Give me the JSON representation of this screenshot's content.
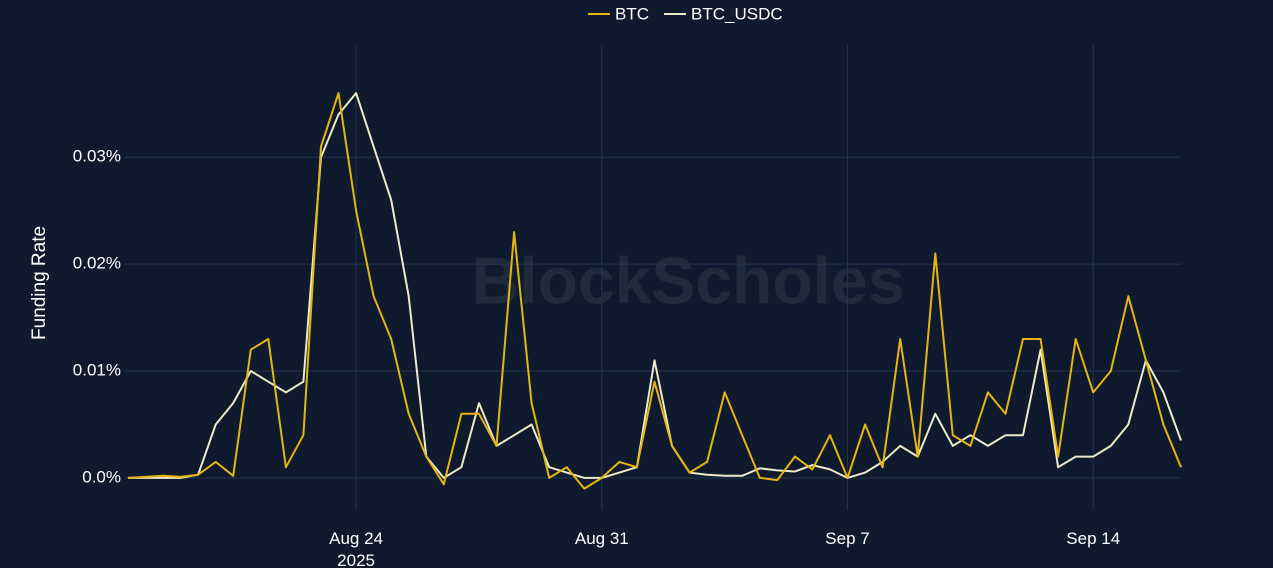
{
  "chart_data": {
    "type": "line",
    "watermark": "BlockScholes",
    "ylabel": "Funding Rate",
    "x": [
      "2025-08-17T12:00",
      "2025-08-18T00:00",
      "2025-08-18T12:00",
      "2025-08-19T00:00",
      "2025-08-19T12:00",
      "2025-08-20T00:00",
      "2025-08-20T12:00",
      "2025-08-21T00:00",
      "2025-08-21T12:00",
      "2025-08-22T00:00",
      "2025-08-22T12:00",
      "2025-08-23T00:00",
      "2025-08-23T12:00",
      "2025-08-24T00:00",
      "2025-08-24T12:00",
      "2025-08-25T00:00",
      "2025-08-25T12:00",
      "2025-08-26T00:00",
      "2025-08-26T12:00",
      "2025-08-27T00:00",
      "2025-08-27T12:00",
      "2025-08-28T00:00",
      "2025-08-28T12:00",
      "2025-08-29T00:00",
      "2025-08-29T12:00",
      "2025-08-30T00:00",
      "2025-08-30T12:00",
      "2025-08-31T00:00",
      "2025-08-31T12:00",
      "2025-09-01T00:00",
      "2025-09-01T12:00",
      "2025-09-02T00:00",
      "2025-09-02T12:00",
      "2025-09-03T00:00",
      "2025-09-03T12:00",
      "2025-09-04T00:00",
      "2025-09-04T12:00",
      "2025-09-05T00:00",
      "2025-09-05T12:00",
      "2025-09-06T00:00",
      "2025-09-06T12:00",
      "2025-09-07T00:00",
      "2025-09-07T12:00",
      "2025-09-08T00:00",
      "2025-09-08T12:00",
      "2025-09-09T00:00",
      "2025-09-09T12:00",
      "2025-09-10T00:00",
      "2025-09-10T12:00",
      "2025-09-11T00:00",
      "2025-09-11T12:00",
      "2025-09-12T00:00",
      "2025-09-12T12:00",
      "2025-09-13T00:00",
      "2025-09-13T12:00",
      "2025-09-14T00:00",
      "2025-09-14T12:00",
      "2025-09-15T00:00",
      "2025-09-15T12:00",
      "2025-09-16T00:00",
      "2025-09-16T12:00"
    ],
    "series": [
      {
        "name": "BTC",
        "color": "#e6b511",
        "values": [
          0,
          0.0001,
          0.0002,
          0.0001,
          0.0003,
          0.0015,
          0.0002,
          0.012,
          0.013,
          0.001,
          0.004,
          0.031,
          0.036,
          0.025,
          0.017,
          0.013,
          0.006,
          0.002,
          -0.0006,
          0.006,
          0.006,
          0.003,
          0.023,
          0.007,
          0,
          0.001,
          -0.001,
          0,
          0.0015,
          0.001,
          0.009,
          0.003,
          0.0005,
          0.0015,
          0.008,
          0.004,
          0,
          -0.0002,
          0.002,
          0.0008,
          0.004,
          0,
          0.005,
          0.001,
          0.013,
          0.002,
          0.021,
          0.004,
          0.003,
          0.008,
          0.006,
          0.013,
          0.013,
          0.002,
          0.013,
          0.008,
          0.01,
          0.017,
          0.011,
          0.005,
          0.001
        ]
      },
      {
        "name": "BTC_USDC",
        "color": "#ecebc7",
        "values": [
          0,
          0,
          0,
          0,
          0.0003,
          0.005,
          0.007,
          0.01,
          0.009,
          0.008,
          0.009,
          0.03,
          0.034,
          0.036,
          0.031,
          0.026,
          0.017,
          0.002,
          0,
          0.001,
          0.007,
          0.003,
          0.004,
          0.005,
          0.001,
          0.0005,
          0,
          0,
          0.0005,
          0.001,
          0.011,
          0.003,
          0.0005,
          0.0003,
          0.0002,
          0.0002,
          0.0009,
          0.0007,
          0.0006,
          0.0012,
          0.0008,
          0,
          0.0005,
          0.0015,
          0.003,
          0.002,
          0.006,
          0.003,
          0.004,
          0.003,
          0.004,
          0.004,
          0.012,
          0.001,
          0.002,
          0.002,
          0.003,
          0.005,
          0.011,
          0.008,
          0.0035
        ]
      }
    ],
    "xlim": [
      "2025-08-17T10:00",
      "2025-09-16T12:00"
    ],
    "xticks": [
      {
        "value": "2025-08-24T00:00",
        "label": "Aug 24\n2025"
      },
      {
        "value": "2025-08-31T00:00",
        "label": "Aug 31"
      },
      {
        "value": "2025-09-07T00:00",
        "label": "Sep 7"
      },
      {
        "value": "2025-09-14T00:00",
        "label": "Sep 14"
      }
    ],
    "ylim": [
      -0.003,
      0.0405
    ],
    "yticks": [
      {
        "value": 0,
        "label": "0.0%"
      },
      {
        "value": 0.01,
        "label": "0.01%"
      },
      {
        "value": 0.02,
        "label": "0.02%"
      },
      {
        "value": 0.03,
        "label": "0.03%"
      }
    ],
    "grid": true,
    "legend": "top"
  }
}
